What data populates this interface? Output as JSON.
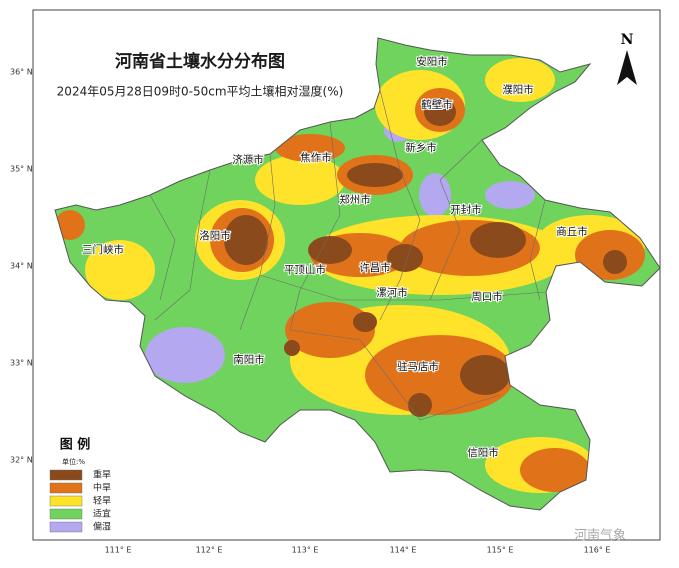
{
  "title": "河南省土壤水分分布图",
  "subtitle": "2024年05月28日09时0-50cm平均土壤相对湿度(%)",
  "north": "N",
  "latitude_labels": [
    "36° N",
    "35° N",
    "34° N",
    "33° N",
    "32° N"
  ],
  "longitude_labels": [
    "111° E",
    "112° E",
    "113° E",
    "114° E",
    "115° E",
    "116° E"
  ],
  "cities": [
    "安阳市",
    "鹤壁市",
    "濮阳市",
    "新乡市",
    "焦作市",
    "济源市",
    "郑州市",
    "开封市",
    "洛阳市",
    "三门峡市",
    "商丘市",
    "平顶山市",
    "许昌市",
    "漯河市",
    "周口市",
    "南阳市",
    "驻马店市",
    "信阳市"
  ],
  "legend": {
    "title": "图 例",
    "unit": "单位:%",
    "items": [
      {
        "label": "重旱",
        "color": "#8a4a1c"
      },
      {
        "label": "中旱",
        "color": "#e0731a"
      },
      {
        "label": "轻旱",
        "color": "#ffe22a"
      },
      {
        "label": "适宜",
        "color": "#6fd35e"
      },
      {
        "label": "偏湿",
        "color": "#b4a8f0"
      }
    ]
  },
  "watermark": "河南气象"
}
